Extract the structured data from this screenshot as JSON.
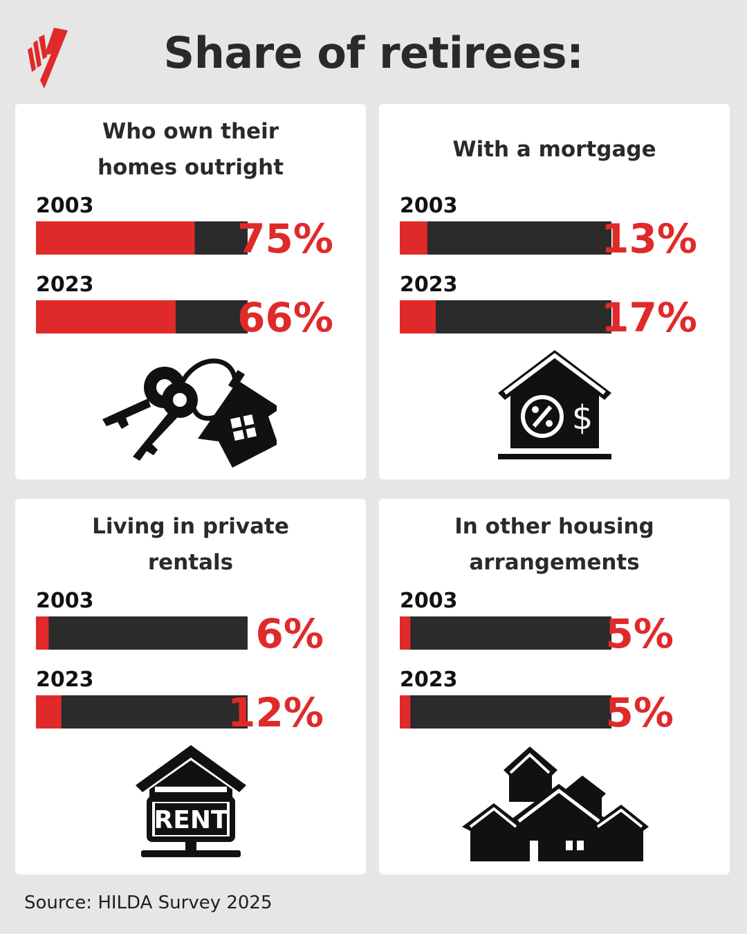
{
  "header": {
    "title": "Share of retirees:"
  },
  "chart_data": [
    {
      "type": "bar",
      "title": "Who own their homes outright",
      "categories": [
        "2003",
        "2023"
      ],
      "values": [
        75,
        66
      ],
      "value_labels": [
        "75%",
        "66%"
      ],
      "ylim": [
        0,
        100
      ],
      "colors": {
        "fill": "#e02a2a",
        "track": "#2b2b2b",
        "label": "#e02a2a"
      }
    },
    {
      "type": "bar",
      "title": "With a mortgage",
      "categories": [
        "2003",
        "2023"
      ],
      "values": [
        13,
        17
      ],
      "value_labels": [
        "13%",
        "17%"
      ],
      "ylim": [
        0,
        100
      ],
      "colors": {
        "fill": "#e02a2a",
        "track": "#2b2b2b",
        "label": "#e02a2a"
      }
    },
    {
      "type": "bar",
      "title": "Living in private rentals",
      "categories": [
        "2003",
        "2023"
      ],
      "values": [
        6,
        12
      ],
      "value_labels": [
        "6%",
        "12%"
      ],
      "ylim": [
        0,
        100
      ],
      "colors": {
        "fill": "#e02a2a",
        "track": "#2b2b2b",
        "label": "#e02a2a"
      }
    },
    {
      "type": "bar",
      "title": "In other housing arrangements",
      "categories": [
        "2003",
        "2023"
      ],
      "values": [
        5,
        5
      ],
      "value_labels": [
        "5%",
        "5%"
      ],
      "ylim": [
        0,
        100
      ],
      "colors": {
        "fill": "#e02a2a",
        "track": "#2b2b2b",
        "label": "#e02a2a"
      }
    }
  ],
  "icons": {
    "logo": "sbs-logo-icon",
    "panel_icons": [
      "keys-house-icon",
      "mortgage-house-icon",
      "rent-sign-house-icon",
      "house-cluster-icon"
    ]
  },
  "footer": {
    "source": "Source: HILDA Survey 2025"
  },
  "colors": {
    "background": "#e6e6e6",
    "panel": "#ffffff",
    "accent": "#e02a2a",
    "dark": "#2b2b2b"
  }
}
